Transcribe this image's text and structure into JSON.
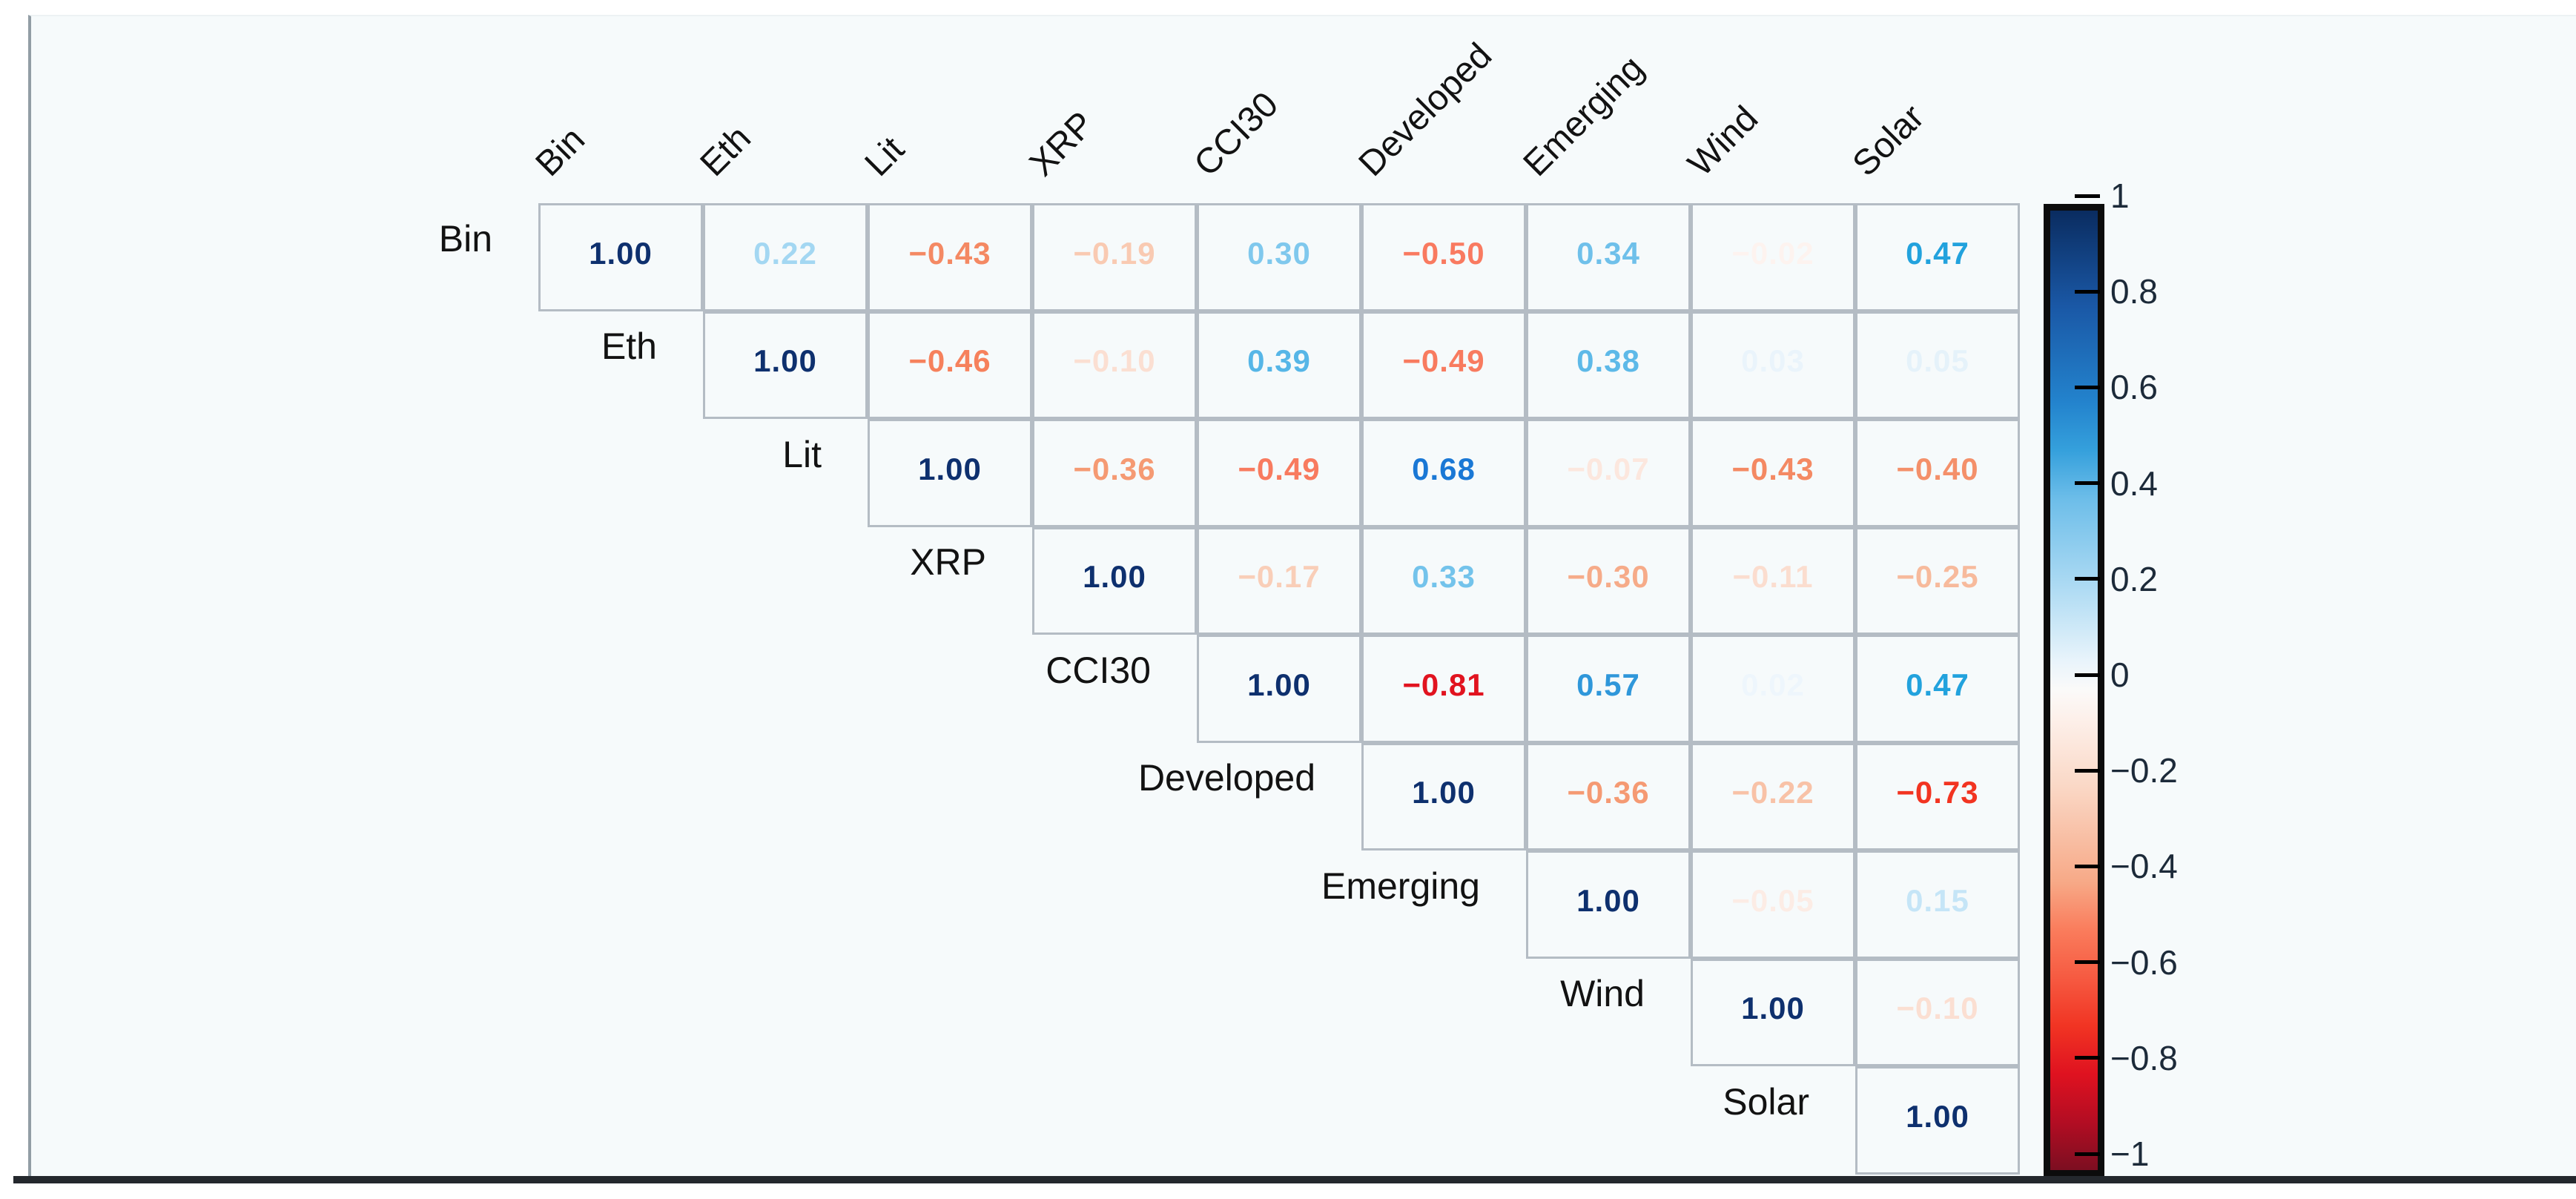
{
  "page": {
    "background": "#ffffff",
    "panel_background": "#f6fafb",
    "panel_left_border_color": "#929da5",
    "bottom_rule_color": "#24282d"
  },
  "chart_data": {
    "type": "heatmap",
    "subtype": "upper-triangular correlation matrix, coefficients rendered as colored numbers",
    "title": "",
    "variables": [
      "Bin",
      "Eth",
      "Lit",
      "XRP",
      "CCI30",
      "Developed",
      "Emerging",
      "Wind",
      "Solar"
    ],
    "grid_line_color": "#b4bcc4",
    "label_color": "#121212",
    "series": [
      {
        "name": "Bin",
        "start_col": 0,
        "values": [
          1.0,
          0.22,
          -0.43,
          -0.19,
          0.3,
          -0.5,
          0.34,
          -0.02,
          0.47
        ]
      },
      {
        "name": "Eth",
        "start_col": 1,
        "values": [
          1.0,
          -0.46,
          -0.1,
          0.39,
          -0.49,
          0.38,
          0.03,
          0.05
        ]
      },
      {
        "name": "Lit",
        "start_col": 2,
        "values": [
          1.0,
          -0.36,
          -0.49,
          0.68,
          -0.07,
          -0.43,
          -0.4
        ]
      },
      {
        "name": "XRP",
        "start_col": 3,
        "values": [
          1.0,
          -0.17,
          0.33,
          -0.3,
          -0.11,
          -0.25
        ]
      },
      {
        "name": "CCI30",
        "start_col": 4,
        "values": [
          1.0,
          -0.81,
          0.57,
          0.02,
          0.47
        ]
      },
      {
        "name": "Developed",
        "start_col": 5,
        "values": [
          1.0,
          -0.36,
          -0.22,
          -0.73
        ]
      },
      {
        "name": "Emerging",
        "start_col": 6,
        "values": [
          1.0,
          -0.05,
          0.15
        ]
      },
      {
        "name": "Wind",
        "start_col": 7,
        "values": [
          1.0,
          -0.1
        ]
      },
      {
        "name": "Solar",
        "start_col": 8,
        "values": [
          1.0
        ]
      }
    ],
    "value_colors": {
      "1.00": "#0e306e",
      "0.68": "#1a78d5",
      "0.57": "#2f97da",
      "0.47": "#22a2dd",
      "0.39": "#56b6e7",
      "0.38": "#5db9e8",
      "0.34": "#6fc0ea",
      "0.33": "#73c3eb",
      "0.30": "#7fc8ed",
      "0.22": "#a3d7f2",
      "0.15": "#c5e5f7",
      "0.05": "#e5f2fa",
      "0.03": "#eaf4fb",
      "0.02": "#eef6fc",
      "-0.02": "#fdf3ef",
      "-0.05": "#fcece5",
      "-0.07": "#fce7de",
      "-0.10": "#fbdfd2",
      "-0.11": "#fbddcf",
      "-0.17": "#f9ceb8",
      "-0.19": "#f9cab2",
      "-0.22": "#f8c2a7",
      "-0.25": "#f7ba9c",
      "-0.30": "#f6ab89",
      "-0.36": "#f59a73",
      "-0.40": "#f4906a",
      "-0.43": "#f48963",
      "-0.46": "#f6815c",
      "-0.49": "#f87b5f",
      "-0.50": "#f97a60",
      "-0.73": "#f23421",
      "-0.81": "#e1131f"
    },
    "colorbar": {
      "position": "right",
      "min": -1,
      "max": 1,
      "tick_labels": [
        "1",
        "0.8",
        "0.6",
        "0.4",
        "0.2",
        "0",
        "−0.2",
        "−0.4",
        "−0.6",
        "−0.8",
        "−1"
      ],
      "colormap": "blue-white-red diverging",
      "frame_color": "#0c0c0c",
      "tick_label_color": "#1c2a39",
      "gradient_stops": [
        {
          "pos": 0,
          "color": "#0a2c60"
        },
        {
          "pos": 10,
          "color": "#1a58a6"
        },
        {
          "pos": 20,
          "color": "#2383cd"
        },
        {
          "pos": 25,
          "color": "#35a0dc"
        },
        {
          "pos": 30,
          "color": "#6cbde9"
        },
        {
          "pos": 40,
          "color": "#b3ddf4"
        },
        {
          "pos": 47,
          "color": "#e9f4fb"
        },
        {
          "pos": 50,
          "color": "#fbfaf9"
        },
        {
          "pos": 53,
          "color": "#fdf0ea"
        },
        {
          "pos": 60,
          "color": "#fad8c6"
        },
        {
          "pos": 70,
          "color": "#f7a987"
        },
        {
          "pos": 75,
          "color": "#fa7c5c"
        },
        {
          "pos": 80,
          "color": "#f65a41"
        },
        {
          "pos": 85,
          "color": "#f13423"
        },
        {
          "pos": 90,
          "color": "#df1220"
        },
        {
          "pos": 95,
          "color": "#b30d23"
        },
        {
          "pos": 100,
          "color": "#7c0e21"
        }
      ]
    }
  }
}
